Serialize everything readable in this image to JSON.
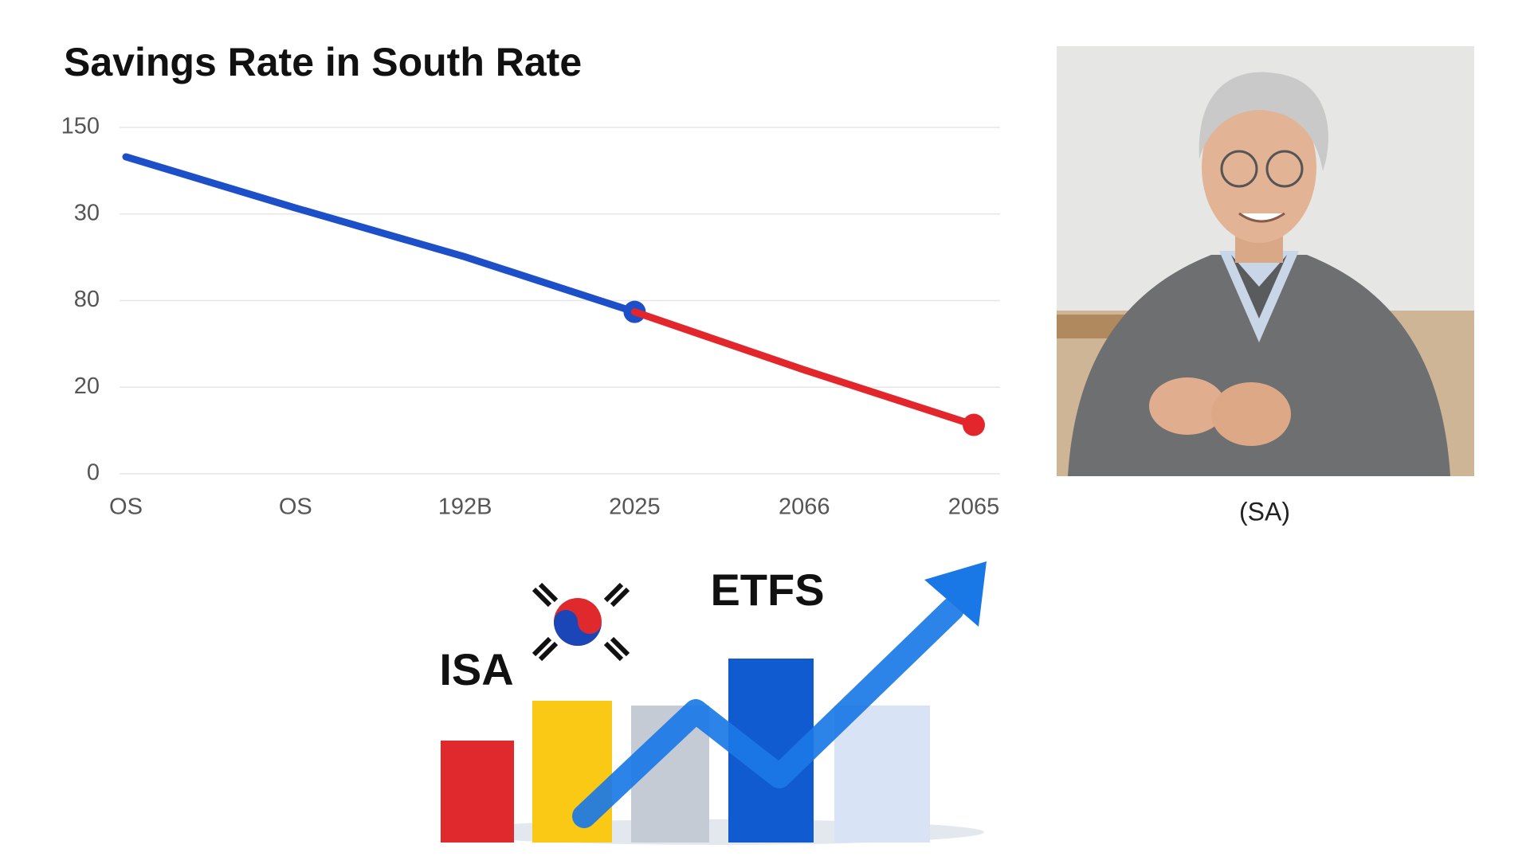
{
  "chart_data": {
    "type": "line",
    "title": "Savings Rate in South Rate",
    "categories": [
      "OS",
      "OS",
      "192B",
      "2025",
      "2066",
      "2065"
    ],
    "series": [
      {
        "color": "#1d4fc8",
        "values": [
          73.2,
          61.4,
          50.1,
          37.4,
          null,
          null
        ]
      },
      {
        "color": "#e2262c",
        "values": [
          null,
          null,
          null,
          37.4,
          24.0,
          11.3
        ]
      }
    ],
    "ylim": [
      0,
      80
    ],
    "yticks": [
      0,
      20,
      {
        "value": 40,
        "label": "80"
      },
      {
        "value": 60,
        "label": "30"
      },
      {
        "value": 80,
        "label": "150"
      }
    ],
    "grid": true
  },
  "photo": {
    "caption": "(SA)"
  },
  "illustration": {
    "labels": [
      "ISA",
      "ETFS"
    ]
  }
}
